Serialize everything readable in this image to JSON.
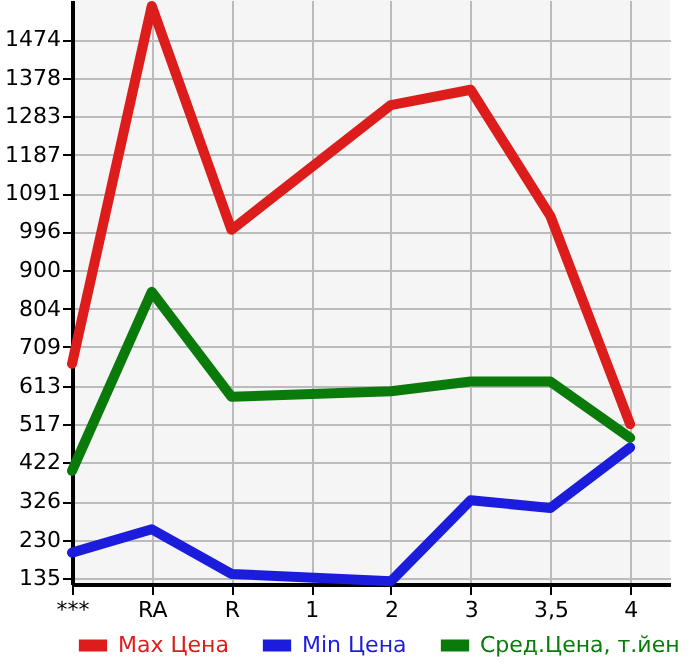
{
  "chart_data": {
    "type": "line",
    "categories": [
      "***",
      "RA",
      "R",
      "1",
      "2",
      "3",
      "3,5",
      "4"
    ],
    "series": [
      {
        "name": "Max Цена",
        "color": "#dd1c1c",
        "values": [
          667,
          1556,
          1000,
          null,
          1310,
          1348,
          1034,
          517
        ]
      },
      {
        "name": "Min Цена",
        "color": "#1c1cdd",
        "values": [
          198,
          256,
          145,
          null,
          127,
          328,
          309,
          459
        ]
      },
      {
        "name": "Сред.Цена, т.йен",
        "color": "#0a7a0a",
        "values": [
          401,
          846,
          585,
          null,
          599,
          623,
          623,
          483
        ]
      }
    ],
    "ylim": [
      120,
      1571
    ],
    "yticks": [
      135,
      230,
      326,
      422,
      517,
      613,
      709,
      804,
      900,
      996,
      1091,
      1187,
      1283,
      1378,
      1474
    ],
    "grid": true,
    "legend": "bottom",
    "marker": "none",
    "line_style": "solid"
  }
}
